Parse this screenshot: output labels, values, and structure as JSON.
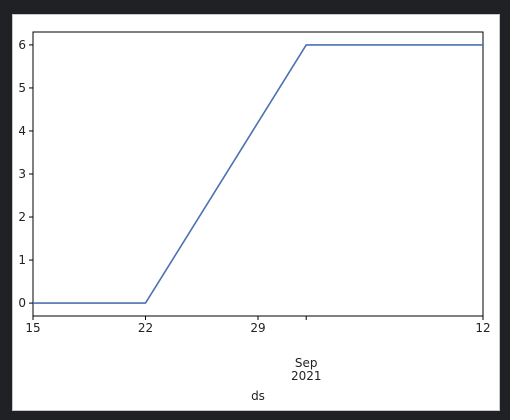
{
  "chart_data": {
    "type": "line",
    "title": "",
    "xlabel": "ds",
    "ylabel": "",
    "x": [
      "2021-08-15",
      "2021-08-22",
      "2021-09-01",
      "2021-09-12"
    ],
    "series": [
      {
        "values": [
          0,
          0,
          6,
          6
        ],
        "color": "#4c72b0"
      }
    ],
    "xlim": [
      "2021-08-15",
      "2021-09-12"
    ],
    "ylim": [
      -0.3,
      6.3
    ],
    "yticks": [
      0,
      1,
      2,
      3,
      4,
      5,
      6
    ],
    "xticks": [
      {
        "date": "2021-08-15",
        "label": "15",
        "sublabel": ""
      },
      {
        "date": "2021-08-22",
        "label": "22",
        "sublabel": ""
      },
      {
        "date": "2021-08-29",
        "label": "29",
        "sublabel": ""
      },
      {
        "date": "2021-09-01",
        "label": "Sep",
        "sublabel": "2021"
      },
      {
        "date": "2021-09-12",
        "label": "12",
        "sublabel": ""
      }
    ],
    "grid": false,
    "legend": "none"
  }
}
